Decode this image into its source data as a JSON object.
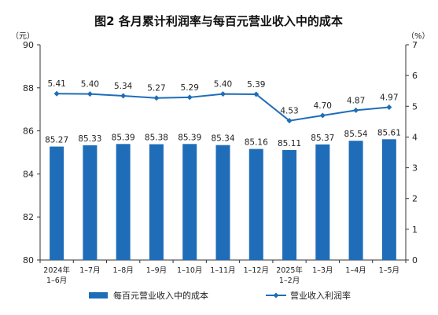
{
  "chart_data": {
    "type": "bar+line",
    "title": "图2  各月累计利润率与每百元营业收入中的成本",
    "left_unit": "（元）",
    "right_unit": "（%）",
    "categories": [
      [
        "2024年",
        "1–6月"
      ],
      [
        "1–7月"
      ],
      [
        "1–8月"
      ],
      [
        "1–9月"
      ],
      [
        "1–10月"
      ],
      [
        "1–11月"
      ],
      [
        "1–12月"
      ],
      [
        "2025年",
        "1–2月"
      ],
      [
        "1–3月"
      ],
      [
        "1–4月"
      ],
      [
        "1–5月"
      ]
    ],
    "series": [
      {
        "name": "每百元营业收入中的成本",
        "type": "bar",
        "axis": "left",
        "color": "#1f6db8",
        "values": [
          85.27,
          85.33,
          85.39,
          85.38,
          85.39,
          85.34,
          85.16,
          85.11,
          85.37,
          85.54,
          85.61
        ],
        "labels": [
          "85.27",
          "85.33",
          "85.39",
          "85.38",
          "85.39",
          "85.34",
          "85.16",
          "85.11",
          "85.37",
          "85.54",
          "85.61"
        ]
      },
      {
        "name": "营业收入利润率",
        "type": "line",
        "axis": "right",
        "color": "#1f6db8",
        "values": [
          5.41,
          5.4,
          5.34,
          5.27,
          5.29,
          5.4,
          5.39,
          4.53,
          4.7,
          4.87,
          4.97
        ],
        "labels": [
          "5.41",
          "5.40",
          "5.34",
          "5.27",
          "5.29",
          "5.40",
          "5.39",
          "4.53",
          "4.70",
          "4.87",
          "4.97"
        ]
      }
    ],
    "left_axis": {
      "min": 80,
      "max": 90,
      "ticks": [
        "80",
        "82",
        "84",
        "86",
        "88",
        "90"
      ]
    },
    "right_axis": {
      "min": 0,
      "max": 7,
      "ticks": [
        "0",
        "1",
        "2",
        "3",
        "4",
        "5",
        "6",
        "7"
      ]
    },
    "grid": false,
    "legend_position": "bottom"
  }
}
